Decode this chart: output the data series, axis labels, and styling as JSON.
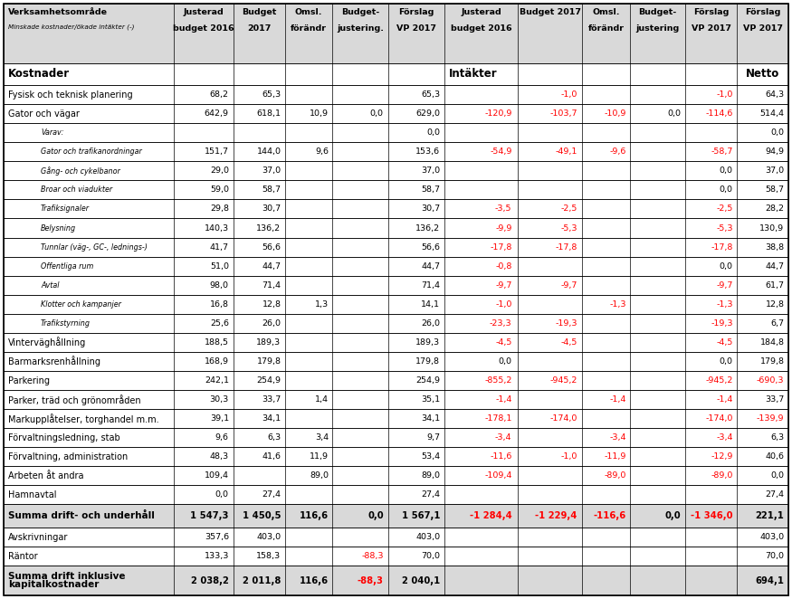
{
  "col_headers_line1": [
    "Verksamhetsområde",
    "Justerad",
    "Budget",
    "Omsl.",
    "Budget-",
    "Förslag",
    "Justerad",
    "Budget 2017",
    "Omsl.",
    "Budget-",
    "Förslag",
    "Förslag"
  ],
  "col_headers_line2": [
    "Minskade kostnader/ökade intäkter (-)",
    "budget 2016",
    "2017",
    "förändr",
    "justering.",
    "VP 2017",
    "budget 2016",
    "",
    "förändr",
    "justering",
    "VP 2017",
    "VP 2017"
  ],
  "section_headers": [
    "Kostnader",
    "",
    "",
    "",
    "",
    "",
    "Intäkter",
    "",
    "",
    "",
    "",
    "Netto"
  ],
  "rows": [
    {
      "label": "Fysisk och teknisk planering",
      "indent": 0,
      "bold": false,
      "italic": false,
      "bg": "white",
      "vals": [
        "68,2",
        "65,3",
        "",
        "",
        "65,3",
        "",
        "-1,0",
        "",
        "",
        "-1,0",
        "64,3"
      ]
    },
    {
      "label": "Gator och vägar",
      "indent": 0,
      "bold": false,
      "italic": false,
      "bg": "white",
      "vals": [
        "642,9",
        "618,1",
        "10,9",
        "0,0",
        "629,0",
        "-120,9",
        "-103,7",
        "-10,9",
        "0,0",
        "-114,6",
        "514,4"
      ]
    },
    {
      "label": "Varav:",
      "indent": 2,
      "bold": false,
      "italic": true,
      "bg": "white",
      "vals": [
        "",
        "",
        "",
        "",
        "0,0",
        "",
        "",
        "",
        "",
        "",
        "0,0"
      ]
    },
    {
      "label": "Gator och trafikanordningar",
      "indent": 2,
      "bold": false,
      "italic": true,
      "bg": "white",
      "vals": [
        "151,7",
        "144,0",
        "9,6",
        "",
        "153,6",
        "-54,9",
        "-49,1",
        "-9,6",
        "",
        "-58,7",
        "94,9"
      ]
    },
    {
      "label": "Gång- och cykelbanor",
      "indent": 2,
      "bold": false,
      "italic": true,
      "bg": "white",
      "vals": [
        "29,0",
        "37,0",
        "",
        "",
        "37,0",
        "",
        "",
        "",
        "",
        "0,0",
        "37,0"
      ]
    },
    {
      "label": "Broar och viadukter",
      "indent": 2,
      "bold": false,
      "italic": true,
      "bg": "white",
      "vals": [
        "59,0",
        "58,7",
        "",
        "",
        "58,7",
        "",
        "",
        "",
        "",
        "0,0",
        "58,7"
      ]
    },
    {
      "label": "Trafiksignaler",
      "indent": 2,
      "bold": false,
      "italic": true,
      "bg": "white",
      "vals": [
        "29,8",
        "30,7",
        "",
        "",
        "30,7",
        "-3,5",
        "-2,5",
        "",
        "",
        "-2,5",
        "28,2"
      ]
    },
    {
      "label": "Belysning",
      "indent": 2,
      "bold": false,
      "italic": true,
      "bg": "white",
      "vals": [
        "140,3",
        "136,2",
        "",
        "",
        "136,2",
        "-9,9",
        "-5,3",
        "",
        "",
        "-5,3",
        "130,9"
      ]
    },
    {
      "label": "Tunnlar (väg-, GC-, lednings-)",
      "indent": 2,
      "bold": false,
      "italic": true,
      "bg": "white",
      "vals": [
        "41,7",
        "56,6",
        "",
        "",
        "56,6",
        "-17,8",
        "-17,8",
        "",
        "",
        "-17,8",
        "38,8"
      ]
    },
    {
      "label": "Offentliga rum",
      "indent": 2,
      "bold": false,
      "italic": true,
      "bg": "white",
      "vals": [
        "51,0",
        "44,7",
        "",
        "",
        "44,7",
        "-0,8",
        "",
        "",
        "",
        "0,0",
        "44,7"
      ]
    },
    {
      "label": "Avtal",
      "indent": 2,
      "bold": false,
      "italic": true,
      "bg": "white",
      "vals": [
        "98,0",
        "71,4",
        "",
        "",
        "71,4",
        "-9,7",
        "-9,7",
        "",
        "",
        "-9,7",
        "61,7"
      ]
    },
    {
      "label": "Klotter och kampanjer",
      "indent": 2,
      "bold": false,
      "italic": true,
      "bg": "white",
      "vals": [
        "16,8",
        "12,8",
        "1,3",
        "",
        "14,1",
        "-1,0",
        "",
        "-1,3",
        "",
        "-1,3",
        "12,8"
      ]
    },
    {
      "label": "Trafikstyrning",
      "indent": 2,
      "bold": false,
      "italic": true,
      "bg": "white",
      "vals": [
        "25,6",
        "26,0",
        "",
        "",
        "26,0",
        "-23,3",
        "-19,3",
        "",
        "",
        "-19,3",
        "6,7"
      ]
    },
    {
      "label": "Vinterväghållning",
      "indent": 0,
      "bold": false,
      "italic": false,
      "bg": "white",
      "vals": [
        "188,5",
        "189,3",
        "",
        "",
        "189,3",
        "-4,5",
        "-4,5",
        "",
        "",
        "-4,5",
        "184,8"
      ]
    },
    {
      "label": "Barmarksrenhållning",
      "indent": 0,
      "bold": false,
      "italic": false,
      "bg": "white",
      "vals": [
        "168,9",
        "179,8",
        "",
        "",
        "179,8",
        "0,0",
        "",
        "",
        "",
        "0,0",
        "179,8"
      ]
    },
    {
      "label": "Parkering",
      "indent": 0,
      "bold": false,
      "italic": false,
      "bg": "white",
      "vals": [
        "242,1",
        "254,9",
        "",
        "",
        "254,9",
        "-855,2",
        "-945,2",
        "",
        "",
        "-945,2",
        "-690,3"
      ]
    },
    {
      "label": "Parker, träd och grönområden",
      "indent": 0,
      "bold": false,
      "italic": false,
      "bg": "white",
      "vals": [
        "30,3",
        "33,7",
        "1,4",
        "",
        "35,1",
        "-1,4",
        "",
        "-1,4",
        "",
        "-1,4",
        "33,7"
      ]
    },
    {
      "label": "Markupplåtelser, torghandel m.m.",
      "indent": 0,
      "bold": false,
      "italic": false,
      "bg": "white",
      "vals": [
        "39,1",
        "34,1",
        "",
        "",
        "34,1",
        "-178,1",
        "-174,0",
        "",
        "",
        "-174,0",
        "-139,9"
      ]
    },
    {
      "label": "Förvaltningsledning, stab",
      "indent": 0,
      "bold": false,
      "italic": false,
      "bg": "white",
      "vals": [
        "9,6",
        "6,3",
        "3,4",
        "",
        "9,7",
        "-3,4",
        "",
        "-3,4",
        "",
        "-3,4",
        "6,3"
      ]
    },
    {
      "label": "Förvaltning, administration",
      "indent": 0,
      "bold": false,
      "italic": false,
      "bg": "white",
      "vals": [
        "48,3",
        "41,6",
        "11,9",
        "",
        "53,4",
        "-11,6",
        "-1,0",
        "-11,9",
        "",
        "-12,9",
        "40,6"
      ]
    },
    {
      "label": "Arbeten åt andra",
      "indent": 0,
      "bold": false,
      "italic": false,
      "bg": "white",
      "vals": [
        "109,4",
        "",
        "89,0",
        "",
        "89,0",
        "-109,4",
        "",
        "-89,0",
        "",
        "-89,0",
        "0,0"
      ]
    },
    {
      "label": "Hamnavtal",
      "indent": 0,
      "bold": false,
      "italic": false,
      "bg": "white",
      "vals": [
        "0,0",
        "27,4",
        "",
        "",
        "27,4",
        "",
        "",
        "",
        "",
        "",
        "27,4"
      ]
    },
    {
      "label": "Summa drift- och underhåll",
      "indent": 0,
      "bold": true,
      "italic": false,
      "bg": "#d9d9d9",
      "vals": [
        "1 547,3",
        "1 450,5",
        "116,6",
        "0,0",
        "1 567,1",
        "-1 284,4",
        "-1 229,4",
        "-116,6",
        "0,0",
        "-1 346,0",
        "221,1"
      ]
    },
    {
      "label": "Avskrivningar",
      "indent": 0,
      "bold": false,
      "italic": false,
      "bg": "white",
      "vals": [
        "357,6",
        "403,0",
        "",
        "",
        "403,0",
        "",
        "",
        "",
        "",
        "",
        "403,0"
      ]
    },
    {
      "label": "Räntor",
      "indent": 0,
      "bold": false,
      "italic": false,
      "bg": "white",
      "vals": [
        "133,3",
        "158,3",
        "",
        "-88,3",
        "70,0",
        "",
        "",
        "",
        "",
        "",
        "70,0"
      ]
    },
    {
      "label": "Summa drift inklusive\nkapitalkostnader",
      "indent": 0,
      "bold": true,
      "italic": false,
      "bg": "#d9d9d9",
      "vals": [
        "2 038,2",
        "2 011,8",
        "116,6",
        "-88,3",
        "2 040,1",
        "",
        "",
        "",
        "",
        "",
        "694,1"
      ]
    }
  ],
  "col_widths_rel": [
    2.05,
    0.72,
    0.62,
    0.57,
    0.67,
    0.68,
    0.88,
    0.78,
    0.57,
    0.67,
    0.62,
    0.62
  ],
  "header_bg": "#d9d9d9",
  "neg_color": "#ff0000",
  "pos_color": "#000000",
  "border_color": "#000000",
  "fig_width": 8.75,
  "fig_height": 6.62
}
